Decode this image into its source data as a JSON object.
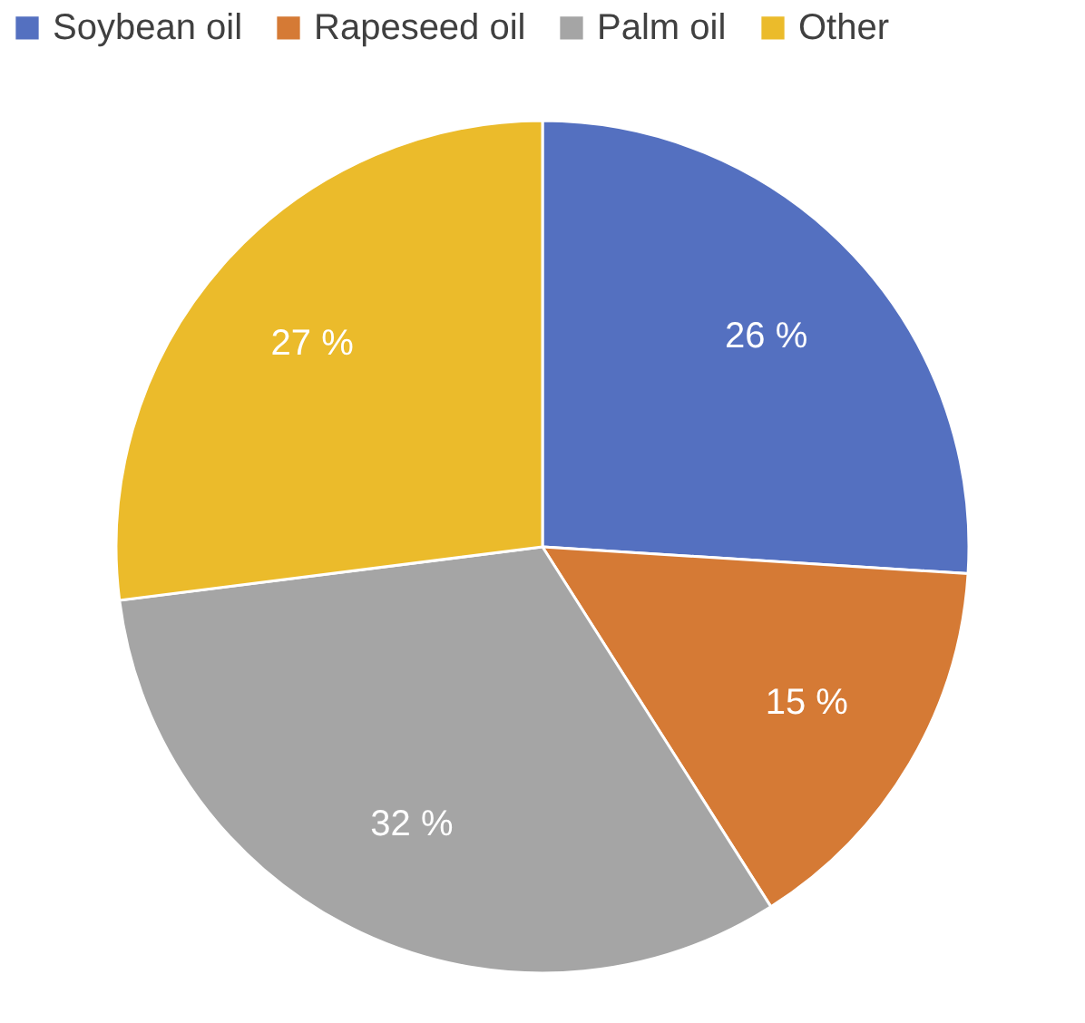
{
  "chart_data": {
    "type": "pie",
    "categories": [
      "Soybean oil",
      "Rapeseed oil",
      "Palm oil",
      "Other"
    ],
    "values": [
      26,
      15,
      32,
      27
    ],
    "colors": [
      "#5470c0",
      "#d57a35",
      "#a5a5a5",
      "#ebbb2b"
    ],
    "value_labels": [
      "26 %",
      "15 %",
      "32 %",
      "27 %"
    ],
    "legend": "top"
  }
}
